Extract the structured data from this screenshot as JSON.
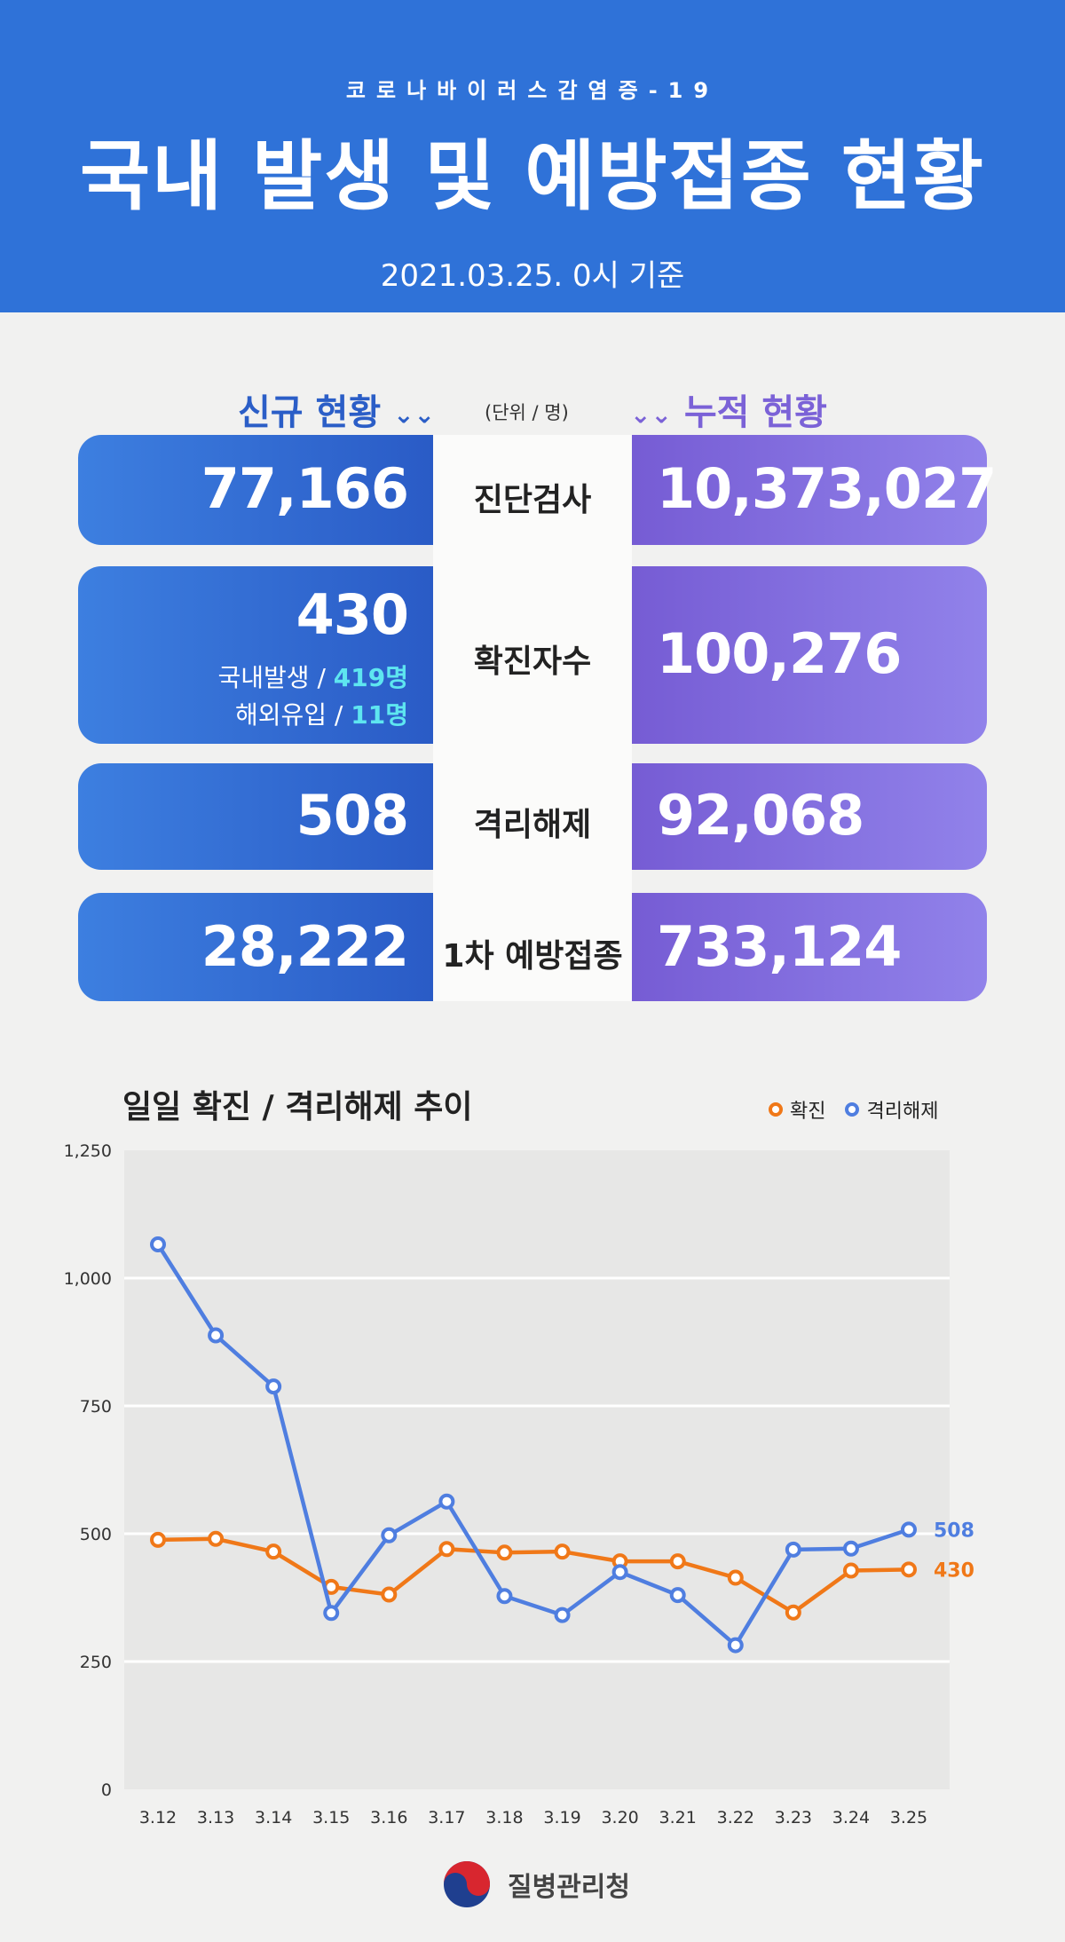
{
  "header": {
    "subtitle": "코로나바이러스감염증-19",
    "title": "국내 발생 및 예방접종 현황",
    "date": "2021.03.25. 0시 기준",
    "bg_color": "#2f72d8"
  },
  "sections": {
    "new_label": "신규 현황",
    "cum_label": "누적 현황",
    "unit": "(단위 / 명)",
    "chevron": "»"
  },
  "stats": [
    {
      "label": "진단검사",
      "new": "77,166",
      "cum": "10,373,027"
    },
    {
      "label": "확진자수",
      "new": "430",
      "cum": "100,276",
      "detail": [
        {
          "name": "국내발생 / ",
          "value": "419명"
        },
        {
          "name": "해외유입 / ",
          "value": "11명"
        }
      ]
    },
    {
      "label": "격리해제",
      "new": "508",
      "cum": "92,068"
    },
    {
      "label": "1차 예방접종",
      "new": "28,222",
      "cum": "733,124"
    }
  ],
  "chart_data": {
    "type": "line",
    "title": "일일 확진 / 격리해제 추이",
    "categories": [
      "3.12",
      "3.13",
      "3.14",
      "3.15",
      "3.16",
      "3.17",
      "3.18",
      "3.19",
      "3.20",
      "3.21",
      "3.22",
      "3.23",
      "3.24",
      "3.25"
    ],
    "series": [
      {
        "name": "확진",
        "color": "#f07818",
        "values": [
          488,
          490,
          465,
          396,
          381,
          470,
          463,
          465,
          446,
          446,
          414,
          346,
          428,
          430
        ]
      },
      {
        "name": "격리해제",
        "color": "#4f7ee0",
        "values": [
          1066,
          888,
          788,
          345,
          497,
          563,
          378,
          341,
          425,
          380,
          282,
          469,
          471,
          508
        ]
      }
    ],
    "end_labels": [
      "430",
      "508"
    ],
    "ylim": [
      0,
      1250
    ],
    "yticks": [
      0,
      250,
      500,
      750,
      1000,
      1250
    ],
    "ytick_labels": [
      "0",
      "250",
      "500",
      "750",
      "1,000",
      "1,250"
    ],
    "grid": true,
    "legend_position": "top-right"
  },
  "footer": {
    "org": "질병관리청"
  }
}
